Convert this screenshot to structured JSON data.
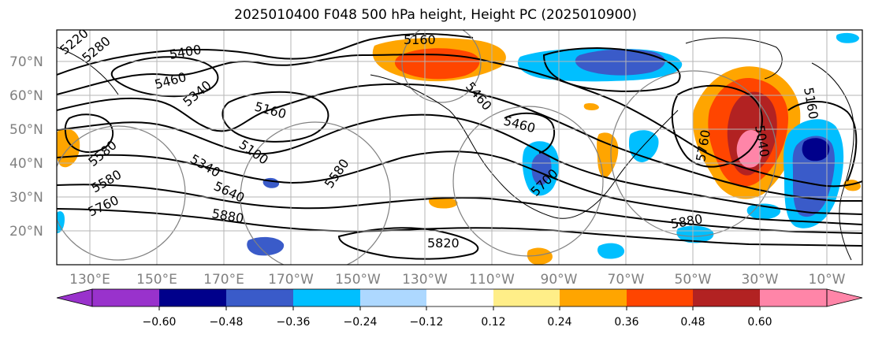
{
  "title": "2025010400 F048 500 hPa height, Height PC (2025010900)",
  "map": {
    "lon_ticks": [
      "130°E",
      "150°E",
      "170°E",
      "170°W",
      "150°W",
      "130°W",
      "110°W",
      "90°W",
      "70°W",
      "50°W",
      "30°W",
      "10°W"
    ],
    "lat_ticks": [
      "70°N",
      "60°N",
      "50°N",
      "40°N",
      "30°N",
      "20°N"
    ],
    "contour_labels": [
      "5220",
      "5280",
      "5400",
      "5460",
      "5160",
      "5160",
      "5340",
      "5100",
      "5340",
      "5640",
      "5760",
      "5580",
      "5460",
      "5700",
      "5820",
      "5880",
      "5880",
      "5160",
      "5580",
      "5760",
      "5580",
      "5040",
      "5460"
    ],
    "gridlines": true
  },
  "colorbar": {
    "colors": [
      "#9932cc",
      "#00008b",
      "#3a5bc9",
      "#00bfff",
      "#add8ff",
      "#ffffff",
      "#ffee88",
      "#ffa500",
      "#ff4500",
      "#b22222",
      "#ff85a8"
    ],
    "tick_labels": [
      "−0.60",
      "−0.48",
      "−0.36",
      "−0.24",
      "−0.12",
      "0.12",
      "0.24",
      "0.36",
      "0.48",
      "0.60"
    ],
    "extend": "both"
  }
}
